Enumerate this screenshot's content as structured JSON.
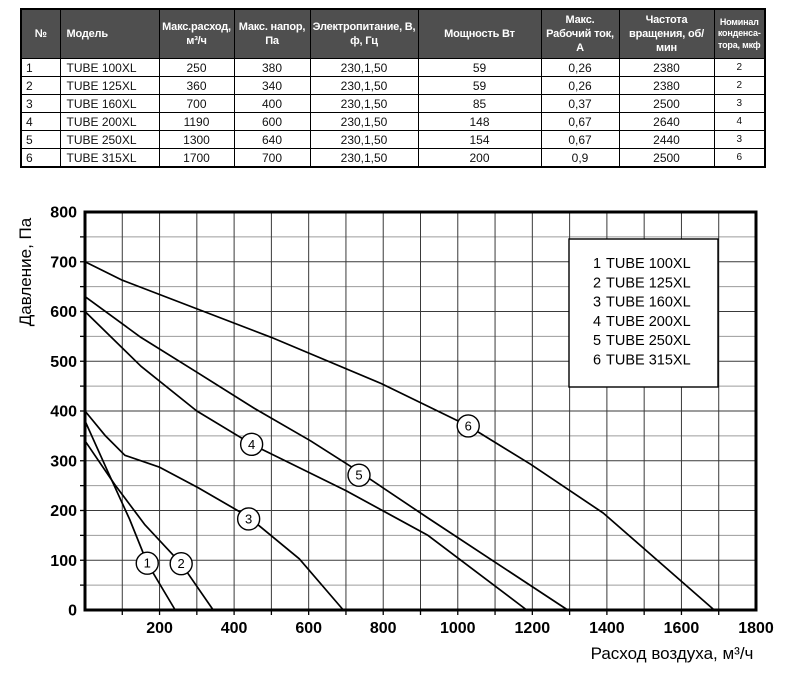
{
  "chart_data": [
    {
      "type": "table",
      "columns": [
        "№",
        "Модель",
        "Макс.расход, м³/ч",
        "Макс. напор, Па",
        "Электропитание, В, ф, Гц",
        "Мощность Вт",
        "Макс. Рабочий ток, А",
        "Частота вращения, об/мин",
        "Номинал конденса-тора, мкф"
      ],
      "rows": [
        [
          "1",
          "TUBE 100XL",
          "250",
          "380",
          "230,1,50",
          "59",
          "0,26",
          "2380",
          "2"
        ],
        [
          "2",
          "TUBE 125XL",
          "360",
          "340",
          "230,1,50",
          "59",
          "0,26",
          "2380",
          "2"
        ],
        [
          "3",
          "TUBE 160XL",
          "700",
          "400",
          "230,1,50",
          "85",
          "0,37",
          "2500",
          "3"
        ],
        [
          "4",
          "TUBE 200XL",
          "1190",
          "600",
          "230,1,50",
          "148",
          "0,67",
          "2640",
          "4"
        ],
        [
          "5",
          "TUBE 250XL",
          "1300",
          "640",
          "230,1,50",
          "154",
          "0,67",
          "2440",
          "3"
        ],
        [
          "6",
          "TUBE 315XL",
          "1700",
          "700",
          "230,1,50",
          "200",
          "0,9",
          "2500",
          "6"
        ]
      ]
    },
    {
      "type": "line",
      "title": "",
      "xlabel": "Расход воздуха, м³/ч",
      "ylabel": "Давление, Па",
      "xlim": [
        0,
        1800
      ],
      "ylim": [
        0,
        800
      ],
      "x_ticks": [
        200,
        400,
        600,
        800,
        1000,
        1200,
        1400,
        1600,
        1800
      ],
      "y_ticks": [
        0,
        100,
        200,
        300,
        400,
        500,
        600,
        700,
        800
      ],
      "x_minor_step": 100,
      "y_minor_step": 50,
      "grid": true,
      "legend_position": "top-right",
      "series": [
        {
          "num": "1",
          "name": "TUBE 100XL",
          "points": [
            [
              0,
              380
            ],
            [
              60,
              280
            ],
            [
              120,
              182
            ],
            [
              167,
              94
            ],
            [
              242,
              0
            ]
          ]
        },
        {
          "num": "2",
          "name": "TUBE 125XL",
          "points": [
            [
              0,
              340
            ],
            [
              80,
              252
            ],
            [
              160,
              172
            ],
            [
              258,
              93
            ],
            [
              344,
              0
            ]
          ]
        },
        {
          "num": "3",
          "name": "TUBE 160XL",
          "points": [
            [
              0,
              400
            ],
            [
              55,
              350
            ],
            [
              107,
              311
            ],
            [
              200,
              287
            ],
            [
              303,
              246
            ],
            [
              437,
              188
            ],
            [
              575,
              103
            ],
            [
              693,
              0
            ]
          ]
        },
        {
          "num": "4",
          "name": "TUBE 200XL",
          "points": [
            [
              0,
              600
            ],
            [
              150,
              490
            ],
            [
              300,
              400
            ],
            [
              450,
              332
            ],
            [
              700,
              240
            ],
            [
              920,
              150
            ],
            [
              1185,
              0
            ]
          ]
        },
        {
          "num": "5",
          "name": "TUBE 250XL",
          "points": [
            [
              0,
              630
            ],
            [
              150,
              548
            ],
            [
              300,
              478
            ],
            [
              455,
              405
            ],
            [
              605,
              340
            ],
            [
              735,
              278
            ],
            [
              920,
              185
            ],
            [
              1295,
              0
            ]
          ]
        },
        {
          "num": "6",
          "name": "TUBE 315XL",
          "points": [
            [
              0,
              700
            ],
            [
              100,
              663
            ],
            [
              500,
              548
            ],
            [
              795,
              455
            ],
            [
              1028,
              370
            ],
            [
              1195,
              293
            ],
            [
              1390,
              195
            ],
            [
              1688,
              0
            ]
          ]
        }
      ],
      "curve_labels": [
        {
          "text": "1",
          "x": 167,
          "y": 94
        },
        {
          "text": "2",
          "x": 258,
          "y": 93
        },
        {
          "text": "3",
          "x": 439,
          "y": 183
        },
        {
          "text": "4",
          "x": 447,
          "y": 333
        },
        {
          "text": "5",
          "x": 735,
          "y": 271
        },
        {
          "text": "6",
          "x": 1028,
          "y": 370
        }
      ],
      "legend": [
        {
          "num": "1",
          "model": "TUBE 100XL"
        },
        {
          "num": "2",
          "model": "TUBE 125XL"
        },
        {
          "num": "3",
          "model": "TUBE 160XL"
        },
        {
          "num": "4",
          "model": "TUBE 200XL"
        },
        {
          "num": "5",
          "model": "TUBE 250XL"
        },
        {
          "num": "6",
          "model": "TUBE 315XL"
        }
      ]
    }
  ]
}
